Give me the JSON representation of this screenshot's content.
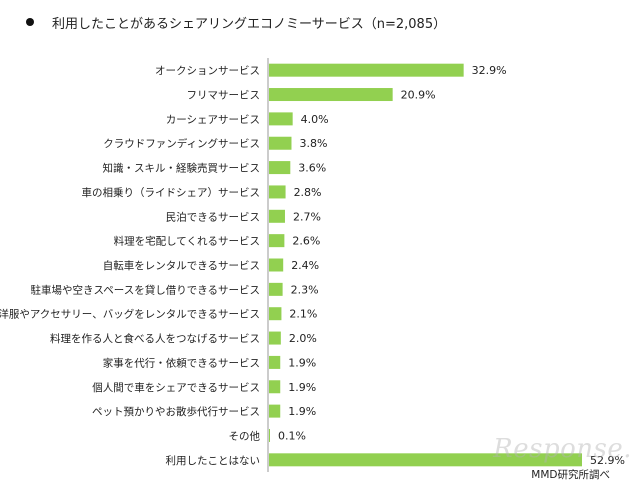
{
  "title": "利用したことがあるシェアリングエコノミーサービス（n=2,085）",
  "source": "MMD研究所調べ",
  "watermark": "Response.",
  "colors": {
    "bar": "#92d050",
    "axis": "#999999",
    "text": "#222222"
  },
  "chart_data": {
    "type": "bar",
    "orientation": "horizontal",
    "title": "利用したことがあるシェアリングエコノミーサービス（n=2,085）",
    "xlabel": "",
    "ylabel": "",
    "xlim": [
      0,
      60
    ],
    "grid": false,
    "categories": [
      "オークションサービス",
      "フリマサービス",
      "カーシェアサービス",
      "クラウドファンディングサービス",
      "知識・スキル・経験売買サービス",
      "車の相乗り（ライドシェア）サービス",
      "民泊できるサービス",
      "料理を宅配してくれるサービス",
      "自転車をレンタルできるサービス",
      "駐車場や空きスペースを貸し借りできるサービス",
      "洋服やアクセサリー、バッグをレンタルできるサービス",
      "料理を作る人と食べる人をつなげるサービス",
      "家事を代行・依頼できるサービス",
      "個人間で車をシェアできるサービス",
      "ペット預かりやお散歩代行サービス",
      "その他",
      "利用したことはない"
    ],
    "values": [
      32.9,
      20.9,
      4.0,
      3.8,
      3.6,
      2.8,
      2.7,
      2.6,
      2.4,
      2.3,
      2.1,
      2.0,
      1.9,
      1.9,
      1.9,
      0.1,
      52.9
    ],
    "value_labels": [
      "32.9%",
      "20.9%",
      "4.0%",
      "3.8%",
      "3.6%",
      "2.8%",
      "2.7%",
      "2.6%",
      "2.4%",
      "2.3%",
      "2.1%",
      "2.0%",
      "1.9%",
      "1.9%",
      "1.9%",
      "0.1%",
      "52.9%"
    ]
  }
}
